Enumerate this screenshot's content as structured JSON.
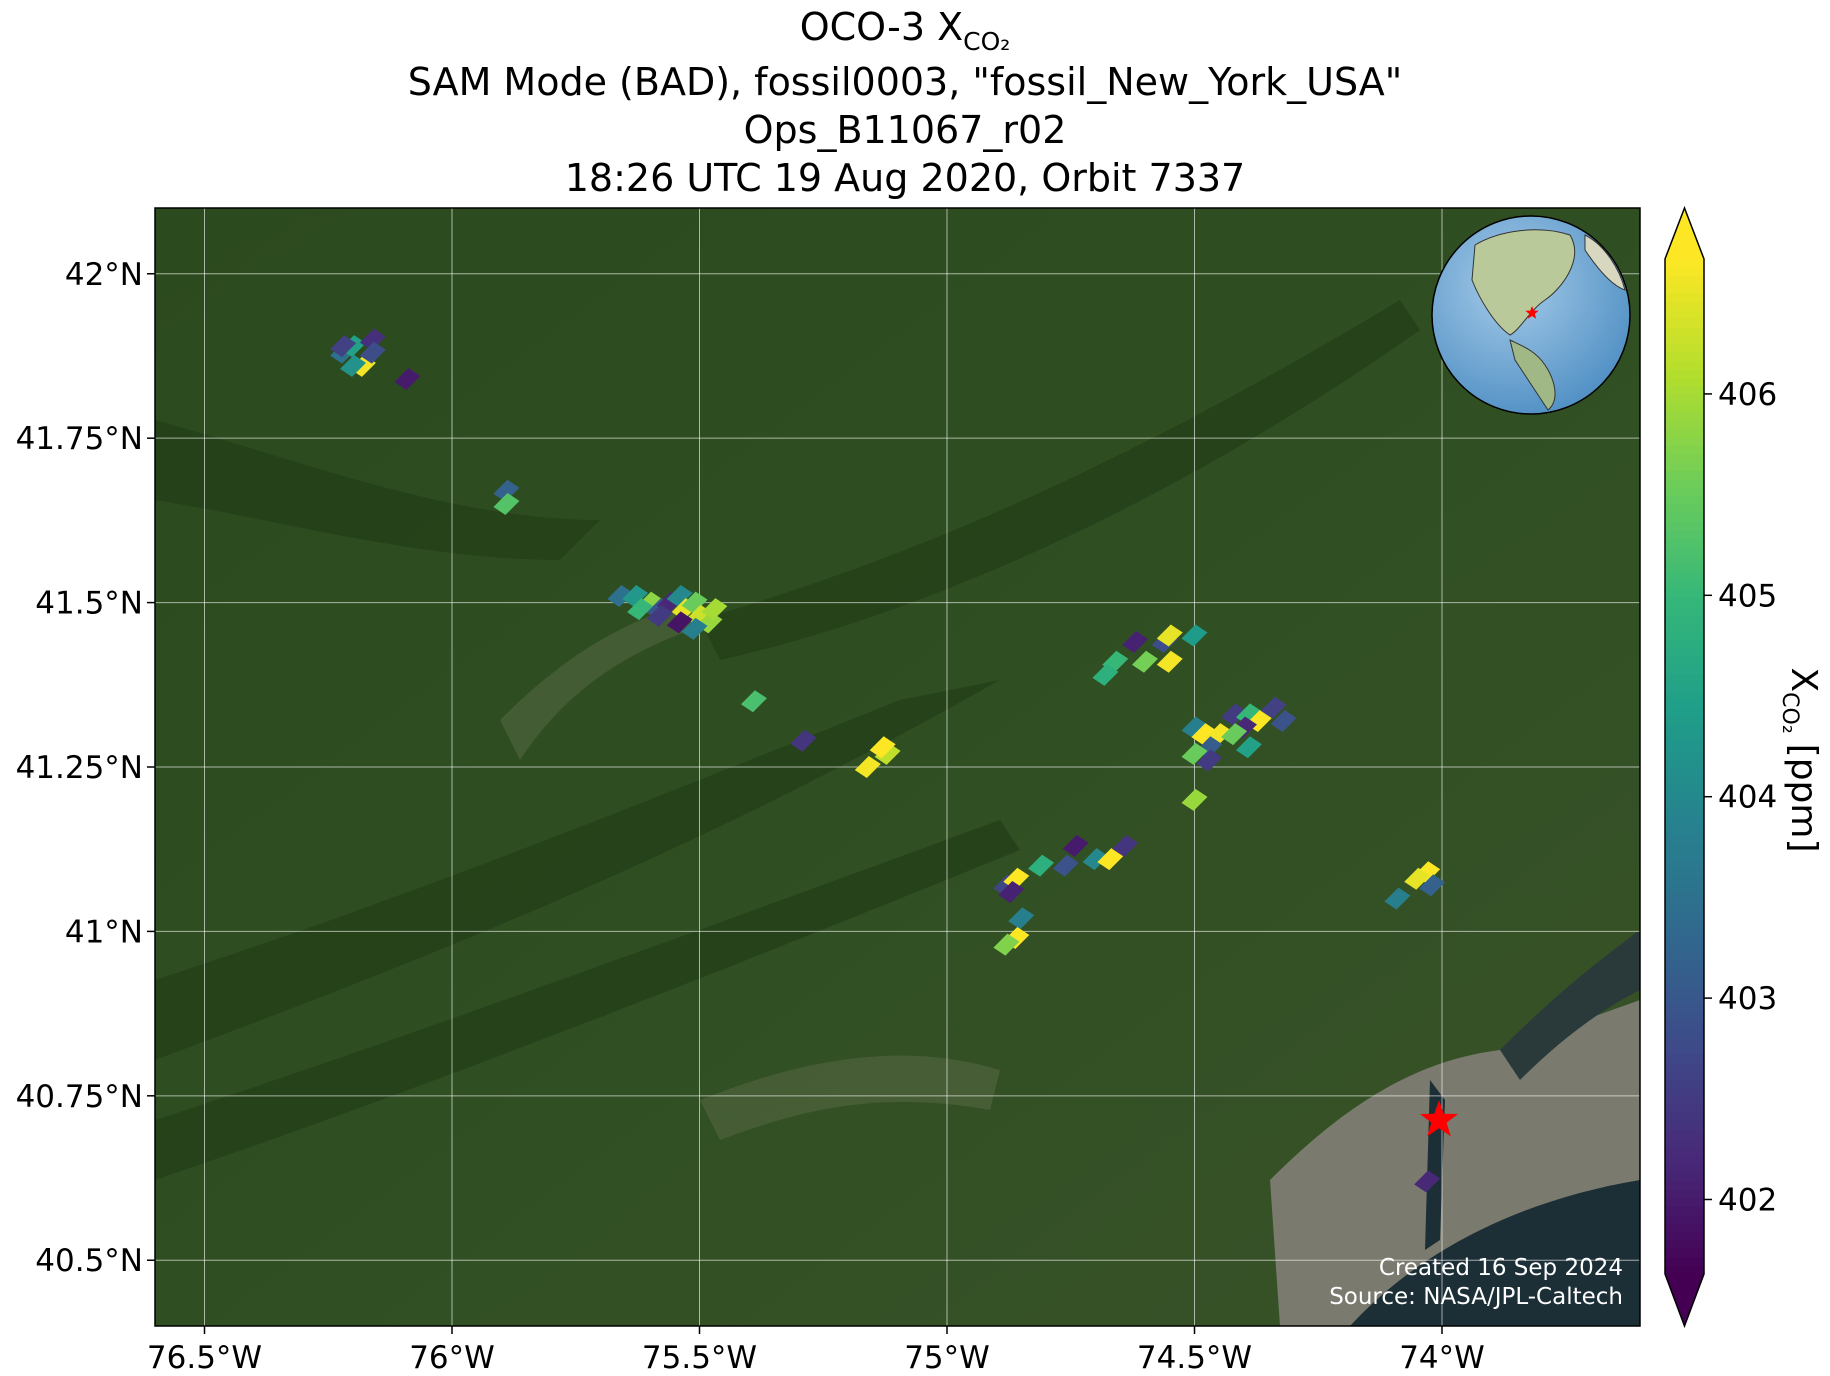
{
  "chart_data": {
    "type": "map",
    "title": "OCO-3 X",
    "title_subscript": "CO₂",
    "subtitle": [
      "SAM Mode (BAD), fossil0003, \"fossil_New_York_USA\"",
      "Ops_B11067_r02",
      "18:26 UTC 19 Aug 2020, Orbit 7337"
    ],
    "xlim": [
      -76.6,
      -73.6
    ],
    "ylim": [
      40.4,
      42.1
    ],
    "xticks": [
      {
        "value": -76.5,
        "label": "76.5°W"
      },
      {
        "value": -76,
        "label": "76°W"
      },
      {
        "value": -75.5,
        "label": "75.5°W"
      },
      {
        "value": -75,
        "label": "75°W"
      },
      {
        "value": -74.5,
        "label": "74.5°W"
      },
      {
        "value": -74,
        "label": "74°W"
      }
    ],
    "yticks": [
      {
        "value": 40.5,
        "label": "40.5°N"
      },
      {
        "value": 40.75,
        "label": "40.75°N"
      },
      {
        "value": 41,
        "label": "41°N"
      },
      {
        "value": 41.25,
        "label": "41.25°N"
      },
      {
        "value": 41.5,
        "label": "41.5°N"
      },
      {
        "value": 41.75,
        "label": "41.75°N"
      },
      {
        "value": 42,
        "label": "42°N"
      }
    ],
    "grid": true,
    "soundings": {
      "lon": [
        -76.22,
        -76.2,
        -76.18,
        -76.2,
        -76.16,
        -76.16,
        -76.22,
        -76.09,
        -75.89,
        -75.89,
        -75.66,
        -75.63,
        -75.6,
        -75.58,
        -75.56,
        -75.54,
        -75.53,
        -75.51,
        -75.5,
        -75.48,
        -75.58,
        -75.54,
        -75.51,
        -75.62,
        -75.47,
        -75.39,
        -75.29,
        -75.16,
        -75.12,
        -75.13,
        -74.66,
        -74.6,
        -74.55,
        -74.62,
        -74.56,
        -74.5,
        -74.55,
        -74.68,
        -74.5,
        -74.48,
        -74.45,
        -74.47,
        -74.5,
        -74.47,
        -74.42,
        -74.39,
        -74.37,
        -74.34,
        -74.32,
        -74.4,
        -74.39,
        -74.42,
        -74.5,
        -74.88,
        -74.86,
        -74.87,
        -74.81,
        -74.76,
        -74.74,
        -74.7,
        -74.67,
        -74.64,
        -74.85,
        -74.86,
        -74.88,
        -74.03,
        -74.05,
        -74.02,
        -74.09,
        -74.03
      ],
      "lat": [
        41.88,
        41.89,
        41.86,
        41.86,
        41.9,
        41.88,
        41.89,
        41.84,
        41.67,
        41.65,
        41.51,
        41.51,
        41.5,
        41.49,
        41.5,
        41.51,
        41.49,
        41.5,
        41.48,
        41.47,
        41.48,
        41.47,
        41.46,
        41.49,
        41.49,
        41.35,
        41.29,
        41.25,
        41.27,
        41.28,
        41.41,
        41.41,
        41.41,
        41.44,
        41.44,
        41.45,
        41.45,
        41.39,
        41.31,
        41.3,
        41.3,
        41.28,
        41.27,
        41.26,
        41.33,
        41.33,
        41.32,
        41.34,
        41.32,
        41.31,
        41.28,
        41.3,
        41.2,
        41.07,
        41.08,
        41.06,
        41.1,
        41.1,
        41.13,
        41.11,
        41.11,
        41.13,
        41.02,
        40.99,
        40.98,
        41.09,
        41.08,
        41.07,
        41.05,
        40.62
      ],
      "values": [
        403.5,
        404.5,
        406.6,
        404.2,
        402.3,
        402.8,
        402.6,
        402.0,
        403.2,
        405.3,
        403.5,
        404.3,
        405.8,
        403.0,
        402.2,
        404.0,
        406.5,
        405.5,
        406.3,
        405.9,
        402.5,
        401.9,
        403.8,
        405.0,
        406.0,
        405.2,
        402.4,
        406.6,
        406.2,
        406.8,
        405.0,
        405.6,
        406.6,
        402.1,
        402.8,
        404.4,
        406.5,
        404.8,
        403.8,
        406.7,
        406.6,
        403.1,
        405.5,
        402.5,
        402.5,
        405.0,
        406.7,
        402.6,
        402.9,
        402.2,
        404.5,
        405.5,
        405.9,
        402.7,
        406.7,
        402.1,
        404.8,
        402.9,
        402.0,
        404.0,
        406.7,
        402.4,
        403.8,
        406.7,
        405.7,
        406.8,
        406.5,
        403.2,
        403.8,
        402.2
      ]
    },
    "colorbar": {
      "label": "X",
      "label_subscript": "CO₂",
      "label_unit": "[ppm]",
      "lim": [
        401.63,
        406.67
      ],
      "ticks": [
        402,
        403,
        404,
        405,
        406
      ],
      "colormap": "viridis",
      "extend": "both"
    },
    "marker": {
      "lon": -74.006,
      "lat": 40.713,
      "color": "#ff0000"
    },
    "annotations": [
      "Created 16 Sep 2024",
      "Source: NASA/JPL-Caltech"
    ]
  }
}
